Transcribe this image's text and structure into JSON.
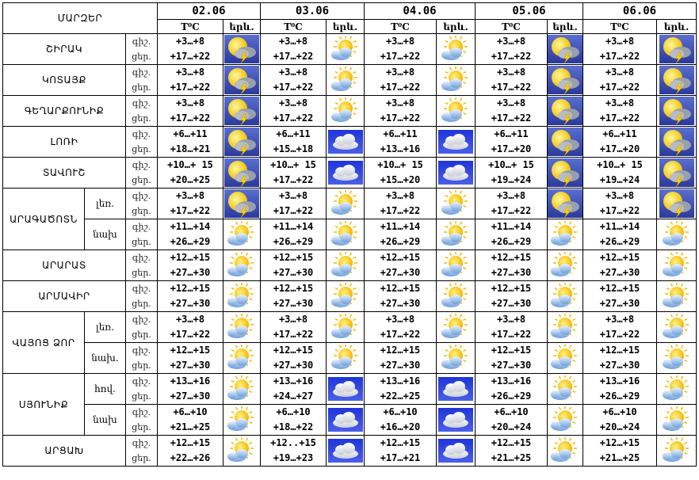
{
  "header": {
    "marz_label": "ՄԱՐԶԵՐ",
    "temp_label": "T⁰C",
    "icon_label": "երև.",
    "dates": [
      "02.06",
      "03.06",
      "04.06",
      "05.06",
      "06.06"
    ]
  },
  "tod_labels": {
    "night": "գիշ.",
    "day": "ցեր."
  },
  "rows": [
    {
      "region": "ՇԻՐԱԿ",
      "sub": "",
      "cells": [
        {
          "night": "+3…+8",
          "day": "+17…+22",
          "icon": "storm"
        },
        {
          "night": "+3…+8",
          "day": "+17…+22",
          "icon": "partly-cloudy"
        },
        {
          "night": "+3…+8",
          "day": "+17…+22",
          "icon": "partly-cloudy"
        },
        {
          "night": "+3…+8",
          "day": "+17…+22",
          "icon": "storm"
        },
        {
          "night": "+3…+8",
          "day": "+17…+22",
          "icon": "storm"
        }
      ]
    },
    {
      "region": "ԿՈՏԱՅՔ",
      "sub": "",
      "cells": [
        {
          "night": "+3…+8",
          "day": "+17…+22",
          "icon": "storm"
        },
        {
          "night": "+3…+8",
          "day": "+17…+22",
          "icon": "partly-cloudy"
        },
        {
          "night": "+3…+8",
          "day": "+17…+22",
          "icon": "partly-cloudy"
        },
        {
          "night": "+3…+8",
          "day": "+17…+22",
          "icon": "storm"
        },
        {
          "night": "+3…+8",
          "day": "+17…+22",
          "icon": "storm"
        }
      ]
    },
    {
      "region": "ԳԵՂԱՐՔՈՒՆԻՔ",
      "sub": "",
      "cells": [
        {
          "night": "+3…+8",
          "day": "+17…+22",
          "icon": "storm"
        },
        {
          "night": "+3…+8",
          "day": "+17…+22",
          "icon": "partly-cloudy"
        },
        {
          "night": "+3…+8",
          "day": "+17…+22",
          "icon": "partly-cloudy"
        },
        {
          "night": "+3…+8",
          "day": "+17…+22",
          "icon": "storm"
        },
        {
          "night": "+3…+8",
          "day": "+17…+22",
          "icon": "storm"
        }
      ]
    },
    {
      "region": "ԼՈՌԻ",
      "sub": "",
      "cells": [
        {
          "night": "+6…+11",
          "day": "+18…+21",
          "icon": "storm"
        },
        {
          "night": "+6…+11",
          "day": "+15…+18",
          "icon": "cloudy"
        },
        {
          "night": "+6…+11",
          "day": "+13…+16",
          "icon": "cloudy"
        },
        {
          "night": "+6…+11",
          "day": "+17…+20",
          "icon": "storm"
        },
        {
          "night": "+6…+11",
          "day": "+17…+20",
          "icon": "storm"
        }
      ]
    },
    {
      "region": "ՏԱՎՈՒՇ",
      "sub": "",
      "cells": [
        {
          "night": "+10…+ 15",
          "day": "+20…+25",
          "icon": "storm"
        },
        {
          "night": "+10…+ 15",
          "day": "+17…+22",
          "icon": "cloudy"
        },
        {
          "night": "+10…+ 15",
          "day": "+15…+20",
          "icon": "cloudy"
        },
        {
          "night": "+10…+ 15",
          "day": "+19…+24",
          "icon": "storm"
        },
        {
          "night": "+10…+ 15",
          "day": "+19…+24",
          "icon": "storm"
        }
      ]
    },
    {
      "region": "ԱՐԱԳԱԾՈՏՆ",
      "sub": "լեռ.",
      "cells": [
        {
          "night": "+3…+8",
          "day": "+17…+22",
          "icon": "storm"
        },
        {
          "night": "+3…+8",
          "day": "+17…+22",
          "icon": "partly-cloudy"
        },
        {
          "night": "+3…+8",
          "day": "+17…+22",
          "icon": "partly-cloudy"
        },
        {
          "night": "+3…+8",
          "day": "+17…+22",
          "icon": "storm"
        },
        {
          "night": "+3…+8",
          "day": "+17…+22",
          "icon": "storm"
        }
      ]
    },
    {
      "region": "",
      "sub": "նախ",
      "cells": [
        {
          "night": "+11…+14",
          "day": "+26…+29",
          "icon": "partly-cloudy"
        },
        {
          "night": "+11…+14",
          "day": "+26…+29",
          "icon": "partly-cloudy"
        },
        {
          "night": "+11…+14",
          "day": "+26…+29",
          "icon": "partly-cloudy"
        },
        {
          "night": "+11…+14",
          "day": "+26…+29",
          "icon": "partly-cloudy"
        },
        {
          "night": "+11…+14",
          "day": "+26…+29",
          "icon": "partly-cloudy"
        }
      ]
    },
    {
      "region": "ԱՐԱՐԱՏ",
      "sub": "",
      "cells": [
        {
          "night": "+12…+15",
          "day": "+27…+30",
          "icon": "partly-cloudy"
        },
        {
          "night": "+12…+15",
          "day": "+27…+30",
          "icon": "partly-cloudy"
        },
        {
          "night": "+12…+15",
          "day": "+27…+30",
          "icon": "partly-cloudy"
        },
        {
          "night": "+12…+15",
          "day": "+27…+30",
          "icon": "partly-cloudy"
        },
        {
          "night": "+12…+15",
          "day": "+27…+30",
          "icon": "partly-cloudy"
        }
      ]
    },
    {
      "region": "ԱՐՄԱՎԻՐ",
      "sub": "",
      "cells": [
        {
          "night": "+12…+15",
          "day": "+27…+30",
          "icon": "partly-cloudy"
        },
        {
          "night": "+12…+15",
          "day": "+27…+30",
          "icon": "partly-cloudy"
        },
        {
          "night": "+12…+15",
          "day": "+27…+30",
          "icon": "partly-cloudy"
        },
        {
          "night": "+12…+15",
          "day": "+27…+30",
          "icon": "partly-cloudy"
        },
        {
          "night": "+12…+15",
          "day": "+27…+30",
          "icon": "partly-cloudy"
        }
      ]
    },
    {
      "region": "ՎԱՅՈՑ ՁՈՐ",
      "sub": "լեռ.",
      "cells": [
        {
          "night": "+3…+8",
          "day": "+17…+22",
          "icon": "partly-cloudy"
        },
        {
          "night": "+3…+8",
          "day": "+17…+22",
          "icon": "partly-cloudy"
        },
        {
          "night": "+3…+8",
          "day": "+17…+22",
          "icon": "partly-cloudy"
        },
        {
          "night": "+3…+8",
          "day": "+17…+22",
          "icon": "partly-cloudy"
        },
        {
          "night": "+3…+8",
          "day": "+17…+22",
          "icon": "partly-cloudy"
        }
      ]
    },
    {
      "region": "",
      "sub": "նախ.",
      "cells": [
        {
          "night": "+12…+15",
          "day": "+27…+30",
          "icon": "partly-cloudy"
        },
        {
          "night": "+12…+15",
          "day": "+27…+30",
          "icon": "partly-cloudy"
        },
        {
          "night": "+12…+15",
          "day": "+27…+30",
          "icon": "partly-cloudy"
        },
        {
          "night": "+12…+15",
          "day": "+27…+30",
          "icon": "partly-cloudy"
        },
        {
          "night": "+12…+15",
          "day": "+27…+30",
          "icon": "partly-cloudy"
        }
      ]
    },
    {
      "region": "ՍՅՈՒՆԻՔ",
      "sub": "հով.",
      "cells": [
        {
          "night": "+13…+16",
          "day": "+27…+30",
          "icon": "partly-cloudy"
        },
        {
          "night": "+13…+16",
          "day": "+24…+27",
          "icon": "cloudy"
        },
        {
          "night": "+13…+16",
          "day": "+22…+25",
          "icon": "cloudy"
        },
        {
          "night": "+13…+16",
          "day": "+26…+29",
          "icon": "partly-cloudy"
        },
        {
          "night": "+13…+16",
          "day": "+26…+29",
          "icon": "partly-cloudy"
        }
      ]
    },
    {
      "region": "",
      "sub": "նախ",
      "cells": [
        {
          "night": "+6…+10",
          "day": "+21…+25",
          "icon": "partly-cloudy"
        },
        {
          "night": "+6…+10",
          "day": "+18…+22",
          "icon": "cloudy"
        },
        {
          "night": "+6…+10",
          "day": "+16…+20",
          "icon": "cloudy"
        },
        {
          "night": "+6…+10",
          "day": "+20…+24",
          "icon": "partly-cloudy"
        },
        {
          "night": "+6…+10",
          "day": "+20…+24",
          "icon": "partly-cloudy"
        }
      ]
    },
    {
      "region": "ԱՐՑԱԽ",
      "sub": "",
      "cells": [
        {
          "night": "+12…+15",
          "day": "+22…+26",
          "icon": "partly-cloudy"
        },
        {
          "night": "+12..+15",
          "day": "+19…+23",
          "icon": "cloudy"
        },
        {
          "night": "+12…+15",
          "day": "+17…+21",
          "icon": "cloudy"
        },
        {
          "night": "+12…+15",
          "day": "+21…+25",
          "icon": "partly-cloudy"
        },
        {
          "night": "+12…+15",
          "day": "+21…+25",
          "icon": "partly-cloudy"
        }
      ]
    }
  ]
}
